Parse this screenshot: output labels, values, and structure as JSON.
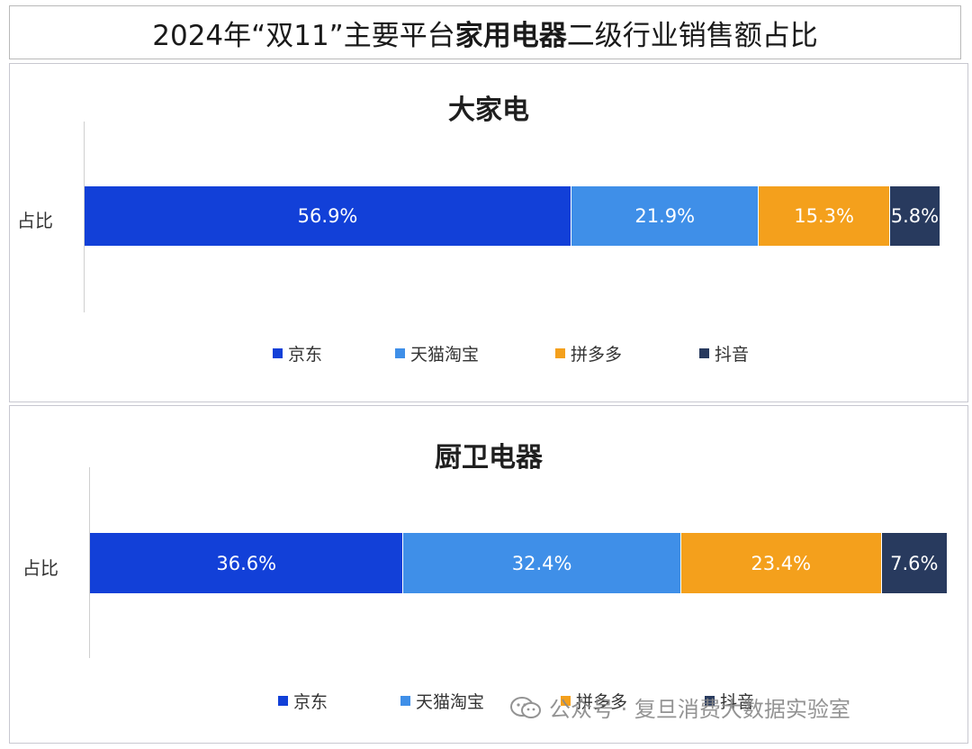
{
  "title": {
    "prefix": "2024年“双11”主要平台",
    "bold": "家用电器",
    "suffix": "二级行业销售额占比"
  },
  "colors": {
    "jd": "#1240d8",
    "tmall": "#3f8fe8",
    "pdd": "#f4a01c",
    "douyin": "#283a5e"
  },
  "chart_data": [
    {
      "type": "bar",
      "orientation": "horizontal-stacked-100",
      "title": "大家电",
      "categories": [
        "占比"
      ],
      "series": [
        {
          "name": "京东",
          "values": [
            56.9
          ],
          "label": "56.9%",
          "color": "#1240d8"
        },
        {
          "name": "天猫淘宝",
          "values": [
            21.9
          ],
          "label": "21.9%",
          "color": "#3f8fe8"
        },
        {
          "name": "拼多多",
          "values": [
            15.3
          ],
          "label": "15.3%",
          "color": "#f4a01c"
        },
        {
          "name": "抖音",
          "values": [
            5.8
          ],
          "label": "5.8%",
          "color": "#283a5e"
        }
      ],
      "legend_position": "bottom",
      "grid": false
    },
    {
      "type": "bar",
      "orientation": "horizontal-stacked-100",
      "title": "厨卫电器",
      "categories": [
        "占比"
      ],
      "series": [
        {
          "name": "京东",
          "values": [
            36.6
          ],
          "label": "36.6%",
          "color": "#1240d8"
        },
        {
          "name": "天猫淘宝",
          "values": [
            32.4
          ],
          "label": "32.4%",
          "color": "#3f8fe8"
        },
        {
          "name": "拼多多",
          "values": [
            23.4
          ],
          "label": "23.4%",
          "color": "#f4a01c"
        },
        {
          "name": "抖音",
          "values": [
            7.6
          ],
          "label": "7.6%",
          "color": "#283a5e"
        }
      ],
      "legend_position": "bottom",
      "grid": false
    }
  ],
  "watermark": {
    "icon": "wechat-icon",
    "text": "公众号 · 复旦消费大数据实验室"
  }
}
